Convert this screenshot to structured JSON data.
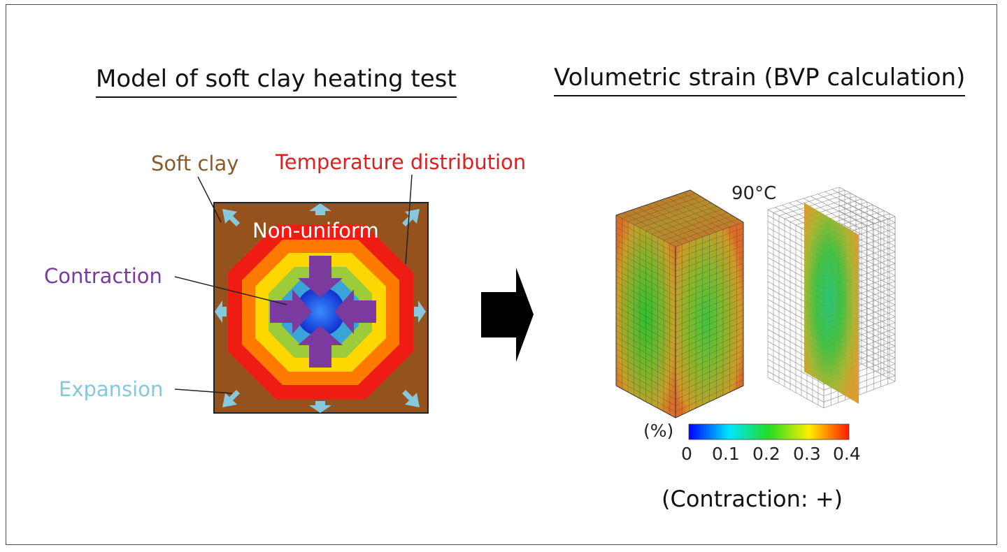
{
  "left_panel": {
    "title": "Model of soft clay heating test",
    "soft_clay_label": "Soft clay",
    "temperature_label": "Temperature distribution",
    "nonuniform_label": "Non-uniform",
    "contraction_label": "Contraction",
    "expansion_label": "Expansion"
  },
  "right_panel": {
    "title": "Volumetric strain (BVP calculation)",
    "temperature": "90°C",
    "colorbar": {
      "unit": "(%)",
      "ticks": [
        "0",
        "0.1",
        "0.2",
        "0.3",
        "0.4"
      ],
      "min": 0,
      "max": 0.4,
      "colors": [
        "#0000ff",
        "#00e5ff",
        "#22dd22",
        "#ffee00",
        "#ff1a00"
      ]
    },
    "note": "(Contraction: +)"
  },
  "colors": {
    "soft_clay": "#96521c",
    "soft_clay_text": "#8b5a2b",
    "temperature_text": "#dd1f1f",
    "contraction": "#7b3b9e",
    "expansion": "#86c8dc",
    "arrow": "#000000"
  },
  "temperature_bands": [
    "#ee1c12",
    "#ff7a00",
    "#ffd700",
    "#9ccc3a",
    "#3aa3d8",
    "#1f58e8"
  ],
  "icons": [
    "big-right-arrow-icon",
    "contraction-arrow-icon",
    "expansion-arrow-icon"
  ]
}
